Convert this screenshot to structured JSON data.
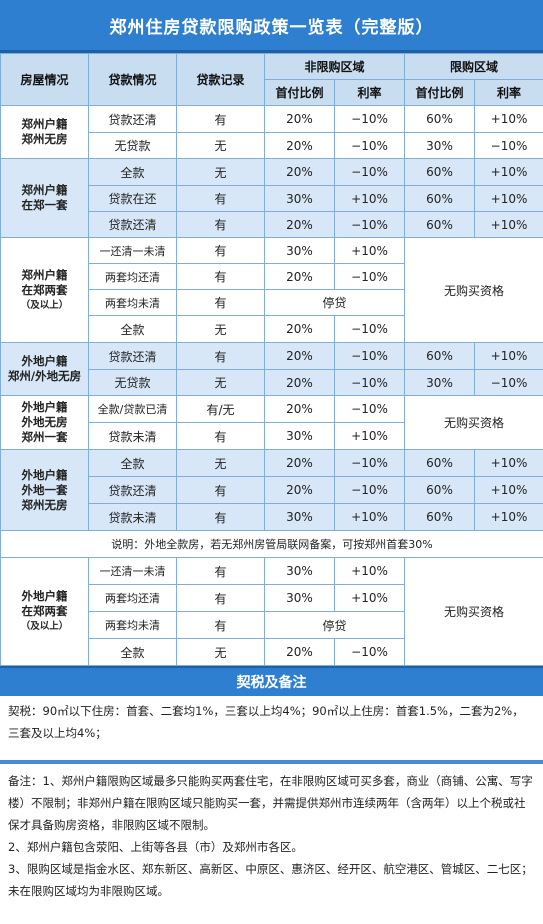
{
  "title": "郑州住房贷款限购政策一览表（完整版）",
  "headers": {
    "house": "房屋情况",
    "loan": "贷款情况",
    "record": "贷款记录",
    "nonlimited": "非限购区域",
    "limited": "限购区域",
    "down": "首付比例",
    "rate": "利率"
  },
  "groups": {
    "g1": "郑州户籍\n郑州无房",
    "g2": "郑州户籍\n在郑一套",
    "g3": "郑州户籍\n在郑两套",
    "g3sub": "（及以上）",
    "g4": "外地户籍\n郑州/外地无房",
    "g5": "外地户籍\n外地无房\n郑州一套",
    "g6": "外地户籍\n外地一套\n郑州无房",
    "g7": "外地户籍\n在郑两套",
    "g7sub": "（及以上）"
  },
  "rows": [
    [
      "贷款还清",
      "有",
      "20%",
      "−10%",
      "60%",
      "+10%"
    ],
    [
      "无贷款",
      "无",
      "20%",
      "−10%",
      "30%",
      "−10%"
    ],
    [
      "全款",
      "无",
      "20%",
      "−10%",
      "60%",
      "+10%"
    ],
    [
      "贷款在还",
      "有",
      "30%",
      "+10%",
      "60%",
      "+10%"
    ],
    [
      "贷款还清",
      "有",
      "20%",
      "−10%",
      "60%",
      "+10%"
    ],
    [
      "一还清一未清",
      "有",
      "30%",
      "+10%"
    ],
    [
      "两套均还清",
      "有",
      "20%",
      "−10%"
    ],
    [
      "两套均未清",
      "有",
      "停贷"
    ],
    [
      "全款",
      "无",
      "20%",
      "−10%"
    ],
    [
      "贷款还清",
      "有",
      "20%",
      "−10%",
      "60%",
      "+10%"
    ],
    [
      "无贷款",
      "无",
      "20%",
      "−10%",
      "30%",
      "−10%"
    ],
    [
      "全款/贷款已清",
      "有/无",
      "20%",
      "−10%"
    ],
    [
      "贷款未清",
      "有",
      "30%",
      "+10%"
    ],
    [
      "全款",
      "无",
      "20%",
      "−10%",
      "60%",
      "+10%"
    ],
    [
      "贷款还清",
      "有",
      "20%",
      "−10%",
      "60%",
      "+10%"
    ],
    [
      "贷款未清",
      "有",
      "30%",
      "+10%",
      "60%",
      "+10%"
    ],
    [
      "一还清一未清",
      "有",
      "30%",
      "+10%"
    ],
    [
      "两套均还清",
      "有",
      "30%",
      "+10%"
    ],
    [
      "两套均未清",
      "有",
      "停贷"
    ],
    [
      "全款",
      "无",
      "20%",
      "−10%"
    ]
  ],
  "no_qualification": "无购买资格",
  "explanation": "说明：外地全款房，若无郑州房管局联网备案，可按郑州首套30%",
  "section_title": "契税及备注",
  "tax_text": "契税：90㎡以下住房：首套、二套均1%，三套以上均4%；90㎡以上住房：首套1.5%，二套为2%，三套及以上均4%；",
  "notes": [
    "备注：1、郑州户籍限购区域最多只能购买两套住宅，在非限购区域可买多套，商业（商铺、公寓、写字楼）不限制；非郑州户籍在限购区域只能购买一套，并需提供郑州市连续两年（含两年）以上个税或社保才具备购房资格，非限购区域不限制。",
    "2、郑州户籍包含荥阳、上街等各县（市）及郑州市各区。",
    "3、限购区域是指金水区、郑东新区、高新区、中原区、惠济区、经开区、航空港区、管城区、二七区；未在限购区域均为非限购区域。"
  ]
}
